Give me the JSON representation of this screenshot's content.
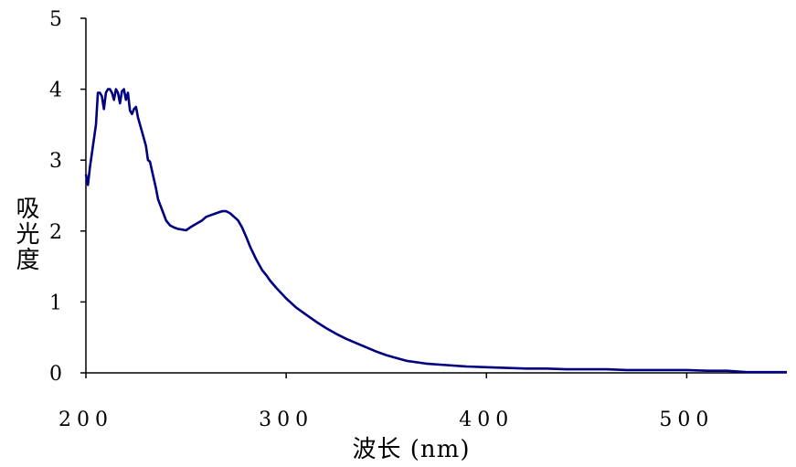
{
  "chart_data": {
    "type": "line",
    "title": "",
    "xlabel": "波长 (nm)",
    "ylabel": "吸光度",
    "xlim": [
      200,
      550
    ],
    "ylim": [
      0,
      5
    ],
    "x_ticks": [
      200,
      300,
      400,
      500
    ],
    "y_ticks": [
      0,
      1,
      2,
      3,
      4,
      5
    ],
    "grid": false,
    "legend": "none",
    "line_color": "#000080",
    "series": [
      {
        "x": [
          200,
          201,
          202,
          203,
          205,
          206,
          207,
          208,
          209,
          210,
          211,
          212,
          213,
          214,
          215,
          216,
          217,
          218,
          219,
          220,
          221,
          222,
          223,
          224,
          225,
          226,
          227,
          228,
          230,
          231,
          232,
          233,
          235,
          236,
          238,
          240,
          242,
          244,
          246,
          248,
          250,
          252,
          255,
          258,
          260,
          262,
          265,
          268,
          270,
          272,
          274,
          276,
          278,
          280,
          282,
          285,
          288,
          290,
          292,
          295,
          300,
          305,
          310,
          315,
          320,
          325,
          330,
          335,
          340,
          345,
          350,
          355,
          360,
          370,
          380,
          390,
          400,
          410,
          420,
          430,
          440,
          450,
          460,
          470,
          480,
          490,
          500,
          510,
          520,
          525,
          530,
          540,
          550
        ],
        "y": [
          2.8,
          2.65,
          2.9,
          3.1,
          3.5,
          3.95,
          3.95,
          3.9,
          3.72,
          3.95,
          4.0,
          4.0,
          3.95,
          3.85,
          4.0,
          3.95,
          3.8,
          3.97,
          4.0,
          3.85,
          3.95,
          3.7,
          3.65,
          3.72,
          3.75,
          3.6,
          3.5,
          3.4,
          3.2,
          3.0,
          2.98,
          2.85,
          2.6,
          2.45,
          2.3,
          2.15,
          2.08,
          2.05,
          2.03,
          2.02,
          2.01,
          2.05,
          2.1,
          2.15,
          2.2,
          2.22,
          2.25,
          2.28,
          2.28,
          2.25,
          2.2,
          2.15,
          2.05,
          1.92,
          1.78,
          1.6,
          1.45,
          1.38,
          1.3,
          1.2,
          1.05,
          0.92,
          0.82,
          0.72,
          0.63,
          0.55,
          0.48,
          0.42,
          0.36,
          0.3,
          0.25,
          0.21,
          0.17,
          0.13,
          0.11,
          0.09,
          0.08,
          0.07,
          0.06,
          0.06,
          0.05,
          0.05,
          0.05,
          0.04,
          0.04,
          0.04,
          0.04,
          0.03,
          0.03,
          0.02,
          0.01,
          0.01,
          0.01
        ]
      }
    ]
  }
}
